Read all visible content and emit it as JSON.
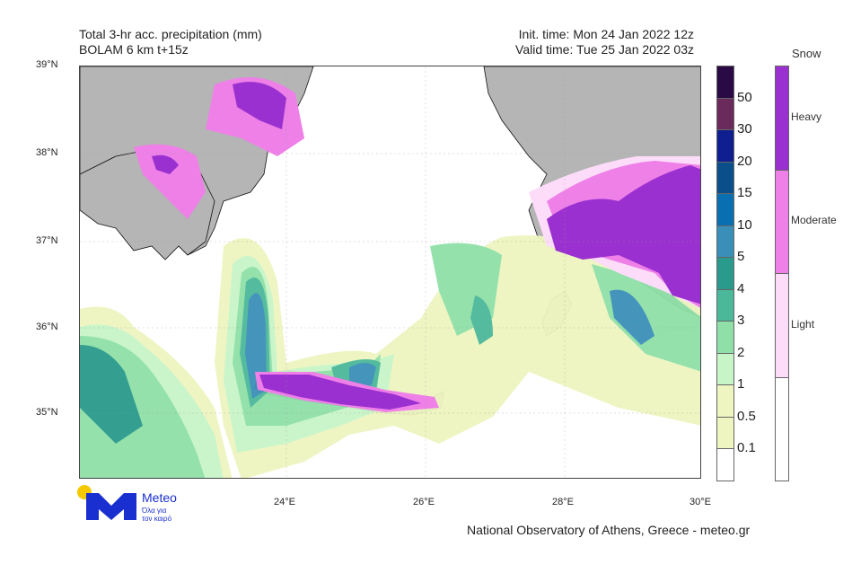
{
  "header": {
    "title_line1": "Total 3-hr acc. precipitation (mm)",
    "title_line2": "BOLAM 6 km t+15z",
    "init_time": "Init. time: Mon 24 Jan 2022 12z",
    "valid_time": "Valid time: Tue 25 Jan 2022 03z"
  },
  "axes": {
    "lat_labels": [
      "39°N",
      "38°N",
      "37°N",
      "36°N",
      "35°N"
    ],
    "lon_labels": [
      "24°E",
      "26°E",
      "28°E",
      "30°E"
    ]
  },
  "precip_legend": {
    "levels": [
      "50",
      "30",
      "20",
      "15",
      "10",
      "5",
      "4",
      "3",
      "2",
      "1",
      "0.5",
      "0.1"
    ],
    "colors": [
      "#2a0a44",
      "#6b2a5c",
      "#0f1f8f",
      "#0a4f8a",
      "#0a6fb0",
      "#3a8fb8",
      "#2a9a8c",
      "#4cb89a",
      "#8fe0a8",
      "#c8f5c8",
      "#eef5c0",
      "#eef5c0",
      "#ffffff"
    ]
  },
  "snow_legend": {
    "title": "Snow",
    "levels": [
      "Heavy",
      "Moderate",
      "Light"
    ],
    "colors": [
      "#9b30d0",
      "#ee80e8",
      "#fcdcf8",
      "#ffffff"
    ]
  },
  "logo": {
    "name": "Meteo",
    "tagline1": "Όλα για",
    "tagline2": "τον καιρό",
    "brand_color": "#1a2fcf",
    "dot_color": "#f5c800"
  },
  "footer": {
    "credit": "National Observatory of Athens, Greece - meteo.gr"
  },
  "map_colors": {
    "land": "#b5b5b5",
    "sea": "#ffffff"
  }
}
